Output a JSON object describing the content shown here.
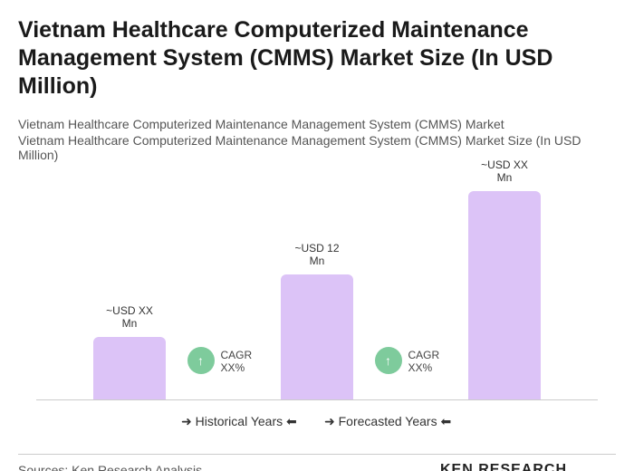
{
  "chart_data": {
    "type": "bar",
    "title": "Vietnam Healthcare Computerized Maintenance Management System (CMMS) Market Size (In USD Million)",
    "subtitle": "Vietnam Healthcare Computerized Maintenance Management System (CMMS) Market",
    "axis_label": "Vietnam Healthcare Computerized Maintenance Management System (CMMS) Market Size (In USD Million)",
    "categories": [
      null,
      null,
      null
    ],
    "values": [
      6,
      12,
      20
    ],
    "value_labels": [
      "~USD XX Mn",
      "~USD 12 Mn",
      "~USD XX Mn"
    ],
    "color": "#dcc3f7",
    "annotations": [
      "CAGR XX%",
      "CAGR XX%"
    ],
    "annotation_color": "#7ecb9c",
    "legend": [
      "Historical Years",
      "Forecasted Years"
    ],
    "source": "Sources: Ken Research Analysis",
    "logo": "KEN RESEARCH"
  }
}
